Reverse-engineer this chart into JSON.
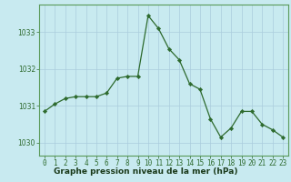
{
  "x": [
    0,
    1,
    2,
    3,
    4,
    5,
    6,
    7,
    8,
    9,
    10,
    11,
    12,
    13,
    14,
    15,
    16,
    17,
    18,
    19,
    20,
    21,
    22,
    23
  ],
  "y": [
    1030.85,
    1031.05,
    1031.2,
    1031.25,
    1031.25,
    1031.25,
    1031.35,
    1031.75,
    1031.8,
    1031.8,
    1033.45,
    1033.1,
    1032.55,
    1032.25,
    1031.6,
    1031.45,
    1030.65,
    1030.15,
    1030.4,
    1030.85,
    1030.85,
    1030.5,
    1030.35,
    1030.15
  ],
  "line_color": "#2d6a2d",
  "marker_color": "#2d6a2d",
  "bg_color": "#c8eaf0",
  "grid_color": "#aaccdd",
  "xlabel": "Graphe pression niveau de la mer (hPa)",
  "xlabel_bg": "#4a8a4a",
  "xlabel_text_color": "#1a3a1a",
  "ylabel_color": "#2d6a2d",
  "ylim_min": 1029.65,
  "ylim_max": 1033.75,
  "yticks": [
    1030,
    1031,
    1032,
    1033
  ],
  "xticks": [
    0,
    1,
    2,
    3,
    4,
    5,
    6,
    7,
    8,
    9,
    10,
    11,
    12,
    13,
    14,
    15,
    16,
    17,
    18,
    19,
    20,
    21,
    22,
    23
  ],
  "tick_label_size": 5.5,
  "xlabel_fontsize": 6.5,
  "marker_size": 2.2,
  "line_width": 0.9
}
